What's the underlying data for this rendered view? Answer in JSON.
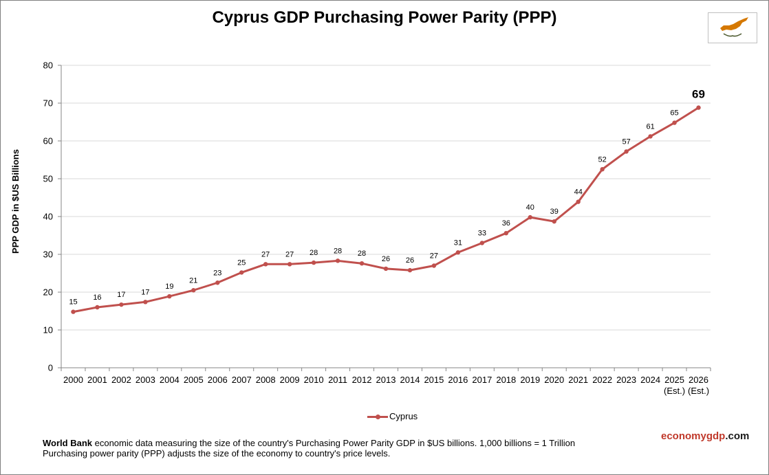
{
  "chart_data": {
    "type": "line",
    "title": "Cyprus GDP Purchasing Power Parity (PPP)",
    "ylabel": "PPP GDP in $US Billions",
    "xlabel": "",
    "ylim": [
      0,
      80
    ],
    "yticks": [
      0,
      10,
      20,
      30,
      40,
      50,
      60,
      70,
      80
    ],
    "grid": true,
    "legend_position": "bottom-center",
    "categories": [
      "2000",
      "2001",
      "2002",
      "2003",
      "2004",
      "2005",
      "2006",
      "2007",
      "2008",
      "2009",
      "2010",
      "2011",
      "2012",
      "2013",
      "2014",
      "2015",
      "2016",
      "2017",
      "2018",
      "2019",
      "2020",
      "2021",
      "2022",
      "2023",
      "2024",
      "2025",
      "2026"
    ],
    "category_sublabels": [
      "",
      "",
      "",
      "",
      "",
      "",
      "",
      "",
      "",
      "",
      "",
      "",
      "",
      "",
      "",
      "",
      "",
      "",
      "",
      "",
      "",
      "",
      "",
      "",
      "",
      "(Est.)",
      "(Est.)"
    ],
    "series": [
      {
        "name": "Cyprus",
        "color": "#c0504d",
        "values": [
          14.8,
          16.0,
          16.7,
          17.4,
          18.9,
          20.5,
          22.5,
          25.2,
          27.4,
          27.4,
          27.8,
          28.3,
          27.6,
          26.2,
          25.8,
          27.0,
          30.5,
          33.0,
          35.6,
          39.8,
          38.7,
          43.9,
          52.5,
          57.2,
          61.2,
          64.8,
          68.8
        ],
        "labels": [
          "15",
          "16",
          "17",
          "17",
          "19",
          "21",
          "23",
          "25",
          "27",
          "27",
          "28",
          "28",
          "28",
          "26",
          "26",
          "27",
          "31",
          "33",
          "36",
          "40",
          "39",
          "44",
          "52",
          "57",
          "61",
          "65",
          "69"
        ]
      }
    ]
  },
  "flag": {
    "icon": "cyprus-flag-icon",
    "island_color": "#d57800",
    "branch_color": "#4e5b31"
  },
  "footnote": {
    "source": "World Bank",
    "line1_rest": " economic data measuring the size of the country's Purchasing Power Parity GDP in $US billions. 1,000 billions = 1 Trillion",
    "line2": "Purchasing power parity (PPP) adjusts the size of the economy to country's price levels."
  },
  "brand": {
    "part1": "economygdp",
    "part2": ".com"
  }
}
